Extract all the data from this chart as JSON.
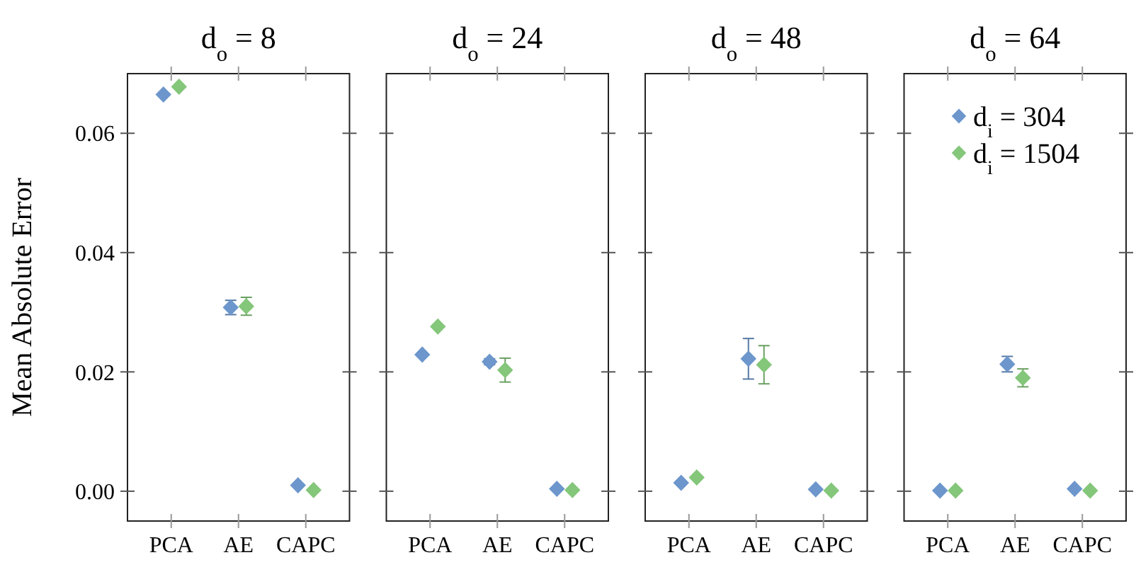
{
  "chart_data": [
    {
      "type": "scatter",
      "title": "d$_{o}$ = 8",
      "ylabel": "Mean Absolute Error",
      "categories": [
        "PCA",
        "AE",
        "CAPC"
      ],
      "marker": "diamond",
      "legend": false,
      "tick_labels": true,
      "ylim": [
        -0.005,
        0.07
      ],
      "yticks": [
        {
          "value": 0,
          "label": "0.00"
        },
        {
          "value": 0.02,
          "label": "0.02"
        },
        {
          "value": 0.04,
          "label": "0.04"
        },
        {
          "value": 0.06,
          "label": "0.06"
        }
      ],
      "series": [
        {
          "color": "#6c96cc",
          "values": [
            0.0665,
            0.0308,
            0.001
          ],
          "errors": [
            null,
            0.0012,
            null
          ]
        },
        {
          "color": "#84c67a",
          "values": [
            0.0678,
            0.031,
            0.0002
          ],
          "errors": [
            null,
            0.0015,
            null
          ]
        }
      ]
    },
    {
      "type": "scatter",
      "title": "d$_{o}$ = 24",
      "categories": [
        "PCA",
        "AE",
        "CAPC"
      ],
      "marker": "diamond",
      "legend": false,
      "tick_labels": "x",
      "ylim": [
        -0.005,
        0.07
      ],
      "yticks": [
        0,
        0.02,
        0.04,
        0.06
      ],
      "series": [
        {
          "color": "#6c96cc",
          "values": [
            0.0229,
            0.0217,
            0.0004
          ],
          "errors": [
            null,
            0.0005,
            null
          ]
        },
        {
          "color": "#84c67a",
          "values": [
            0.0276,
            0.0203,
            0.0002
          ],
          "errors": [
            null,
            0.002,
            null
          ]
        }
      ]
    },
    {
      "type": "scatter",
      "title": "d$_{o}$ = 48",
      "categories": [
        "PCA",
        "AE",
        "CAPC"
      ],
      "marker": "diamond",
      "legend": false,
      "tick_labels": "x",
      "ylim": [
        -0.005,
        0.07
      ],
      "yticks": [
        0,
        0.02,
        0.04,
        0.06
      ],
      "series": [
        {
          "color": "#6c96cc",
          "values": [
            0.0014,
            0.0222,
            0.0003
          ],
          "errors": [
            null,
            0.0034,
            null
          ]
        },
        {
          "color": "#84c67a",
          "values": [
            0.0023,
            0.0212,
            0.0001
          ],
          "errors": [
            null,
            0.0032,
            null
          ]
        }
      ]
    },
    {
      "type": "scatter",
      "title": "d$_{o}$ = 64",
      "categories": [
        "PCA",
        "AE",
        "CAPC"
      ],
      "marker": "diamond",
      "legend": "top right",
      "tick_labels": "x",
      "ylim": [
        -0.005,
        0.07
      ],
      "yticks": [
        0,
        0.02,
        0.04,
        0.06
      ],
      "series": [
        {
          "name": "d$_{i}$ = 304",
          "color": "#6c96cc",
          "values": [
            0.0001,
            0.0213,
            0.0004
          ],
          "errors": [
            null,
            0.0013,
            null
          ]
        },
        {
          "name": "d$_{i}$ = 1504",
          "color": "#84c67a",
          "values": [
            0.0001,
            0.019,
            0.0001
          ],
          "errors": [
            null,
            0.0015,
            null
          ]
        }
      ]
    }
  ]
}
